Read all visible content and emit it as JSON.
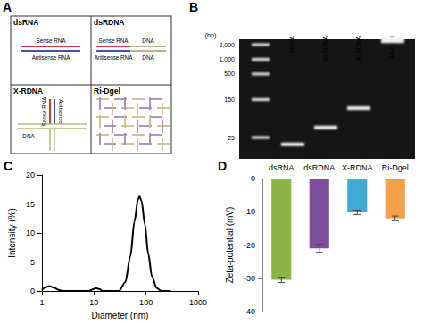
{
  "diagram": {
    "panel_label": "A",
    "cells": [
      {
        "title": "dsRNA",
        "texts": [
          "Sense RNA",
          "Antisense RNA"
        ]
      },
      {
        "title": "dsRDNA",
        "texts": [
          "Sense RNA",
          "DNA",
          "Antisense RNA",
          "DNA"
        ]
      },
      {
        "title": "X-RDNA",
        "texts": [
          "Sense RNA",
          "Antisense",
          "DNA"
        ]
      },
      {
        "title": "Ri-Dgel",
        "texts": []
      }
    ]
  },
  "gel": {
    "panel_label": "B",
    "unit": "(bp)",
    "lanes": [
      "dsRNA",
      "dsRDNA",
      "X-RDNA",
      "Ri-Dgel"
    ],
    "ladder": [
      {
        "value": 2000,
        "label": "2,000"
      },
      {
        "value": 1000,
        "label": "1,000"
      },
      500,
      150,
      25
    ],
    "bands_bp": [
      18,
      40,
      100,
      2500
    ]
  },
  "chart_data": [
    {
      "panel_label": "C",
      "type": "line",
      "xlabel": "Diameter (nm)",
      "ylabel": "Intensity (%)",
      "x": [
        1,
        1.2,
        1.4,
        1.7,
        2.1,
        2.6,
        5,
        8,
        9.5,
        11,
        12.5,
        15,
        30,
        40,
        50,
        60,
        70,
        75,
        82,
        95,
        110,
        130,
        160,
        200,
        300
      ],
      "values": [
        0.2,
        0.7,
        0.85,
        0.6,
        0.2,
        0,
        0,
        0,
        0.3,
        0.5,
        0.35,
        0,
        0,
        1.5,
        6,
        12,
        15.8,
        16.3,
        15.5,
        11.5,
        6.5,
        2.5,
        0.5,
        0,
        0
      ],
      "color": "#000000",
      "xlim": [
        1,
        1000
      ],
      "xticks": [
        1,
        10,
        100,
        1000
      ],
      "ylim": [
        0,
        20
      ],
      "yticks": [
        0,
        5,
        10,
        15,
        20
      ],
      "log": "x",
      "grid": false
    },
    {
      "panel_label": "D",
      "type": "bar",
      "ylabel": "Zeta-potential (mV)",
      "categories": [
        "dsRNA",
        "dsRDNA",
        "X-RDNA",
        "Ri-Dgel"
      ],
      "values": [
        -30.5,
        -21,
        -10.2,
        -12
      ],
      "errors": [
        0.8,
        1.2,
        0.7,
        0.7
      ],
      "colors": [
        "#8cb444",
        "#7d4f9e",
        "#3eaad6",
        "#f4a04b"
      ],
      "ylim": [
        -40,
        0
      ],
      "yticks": [
        -40,
        -30,
        -20,
        -10,
        0
      ],
      "grid": false
    }
  ]
}
